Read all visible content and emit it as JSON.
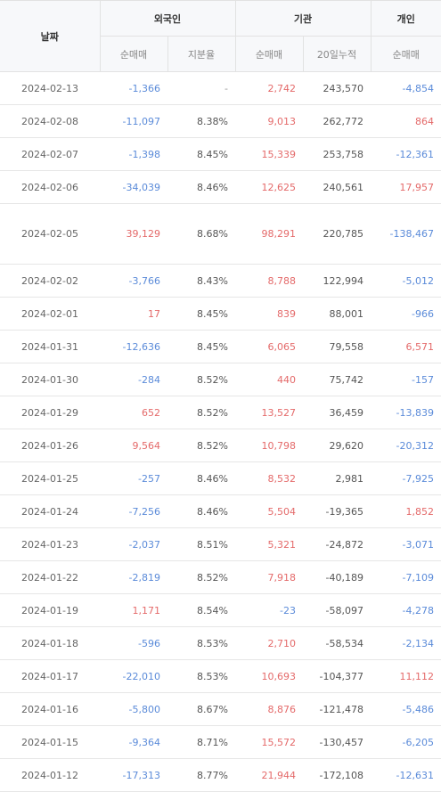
{
  "header": {
    "date": "날짜",
    "foreign": "외국인",
    "institution": "기관",
    "individual": "개인",
    "net": "순매매",
    "share": "지분율",
    "cum20": "20일누적"
  },
  "rows": [
    {
      "date": "2024-02-13",
      "f_net": "-1,366",
      "f_share": "-",
      "i_net": "2,742",
      "i_cum": "243,570",
      "p_net": "-4,854"
    },
    {
      "date": "2024-02-08",
      "f_net": "-11,097",
      "f_share": "8.38%",
      "i_net": "9,013",
      "i_cum": "262,772",
      "p_net": "864"
    },
    {
      "date": "2024-02-07",
      "f_net": "-1,398",
      "f_share": "8.45%",
      "i_net": "15,339",
      "i_cum": "253,758",
      "p_net": "-12,361"
    },
    {
      "date": "2024-02-06",
      "f_net": "-34,039",
      "f_share": "8.46%",
      "i_net": "12,625",
      "i_cum": "240,561",
      "p_net": "17,957"
    },
    {
      "date": "2024-02-05",
      "f_net": "39,129",
      "f_share": "8.68%",
      "i_net": "98,291",
      "i_cum": "220,785",
      "p_net": "-138,467"
    },
    {
      "date": "2024-02-02",
      "f_net": "-3,766",
      "f_share": "8.43%",
      "i_net": "8,788",
      "i_cum": "122,994",
      "p_net": "-5,012"
    },
    {
      "date": "2024-02-01",
      "f_net": "17",
      "f_share": "8.45%",
      "i_net": "839",
      "i_cum": "88,001",
      "p_net": "-966"
    },
    {
      "date": "2024-01-31",
      "f_net": "-12,636",
      "f_share": "8.45%",
      "i_net": "6,065",
      "i_cum": "79,558",
      "p_net": "6,571"
    },
    {
      "date": "2024-01-30",
      "f_net": "-284",
      "f_share": "8.52%",
      "i_net": "440",
      "i_cum": "75,742",
      "p_net": "-157"
    },
    {
      "date": "2024-01-29",
      "f_net": "652",
      "f_share": "8.52%",
      "i_net": "13,527",
      "i_cum": "36,459",
      "p_net": "-13,839"
    },
    {
      "date": "2024-01-26",
      "f_net": "9,564",
      "f_share": "8.52%",
      "i_net": "10,798",
      "i_cum": "29,620",
      "p_net": "-20,312"
    },
    {
      "date": "2024-01-25",
      "f_net": "-257",
      "f_share": "8.46%",
      "i_net": "8,532",
      "i_cum": "2,981",
      "p_net": "-7,925"
    },
    {
      "date": "2024-01-24",
      "f_net": "-7,256",
      "f_share": "8.46%",
      "i_net": "5,504",
      "i_cum": "-19,365",
      "p_net": "1,852"
    },
    {
      "date": "2024-01-23",
      "f_net": "-2,037",
      "f_share": "8.51%",
      "i_net": "5,321",
      "i_cum": "-24,872",
      "p_net": "-3,071"
    },
    {
      "date": "2024-01-22",
      "f_net": "-2,819",
      "f_share": "8.52%",
      "i_net": "7,918",
      "i_cum": "-40,189",
      "p_net": "-7,109"
    },
    {
      "date": "2024-01-19",
      "f_net": "1,171",
      "f_share": "8.54%",
      "i_net": "-23",
      "i_cum": "-58,097",
      "p_net": "-4,278"
    },
    {
      "date": "2024-01-18",
      "f_net": "-596",
      "f_share": "8.53%",
      "i_net": "2,710",
      "i_cum": "-58,534",
      "p_net": "-2,134"
    },
    {
      "date": "2024-01-17",
      "f_net": "-22,010",
      "f_share": "8.53%",
      "i_net": "10,693",
      "i_cum": "-104,377",
      "p_net": "11,112"
    },
    {
      "date": "2024-01-16",
      "f_net": "-5,800",
      "f_share": "8.67%",
      "i_net": "8,876",
      "i_cum": "-121,478",
      "p_net": "-5,486"
    },
    {
      "date": "2024-01-15",
      "f_net": "-9,364",
      "f_share": "8.71%",
      "i_net": "15,572",
      "i_cum": "-130,457",
      "p_net": "-6,205"
    },
    {
      "date": "2024-01-12",
      "f_net": "-17,313",
      "f_share": "8.77%",
      "i_net": "21,944",
      "i_cum": "-172,108",
      "p_net": "-12,631"
    }
  ]
}
